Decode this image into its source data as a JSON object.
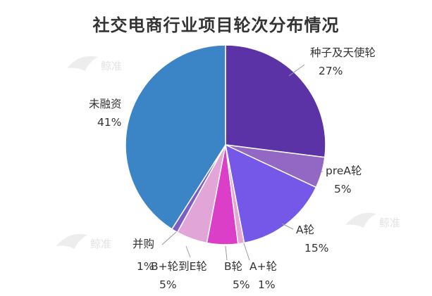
{
  "watermark": "鲸准",
  "chart_data": {
    "type": "pie",
    "title": "社交电商行业项目轮次分布情况",
    "slices": [
      {
        "label": "种子及天使轮",
        "value_label": "27%",
        "value": 27,
        "color": "#5b33a6"
      },
      {
        "label": "preA轮",
        "value_label": "5%",
        "value": 5,
        "color": "#9368c4"
      },
      {
        "label": "A轮",
        "value_label": "15%",
        "value": 15,
        "color": "#7658e8"
      },
      {
        "label": "A+轮",
        "value_label": "1%",
        "value": 1,
        "color": "#e7a6d6"
      },
      {
        "label": "B轮",
        "value_label": "5%",
        "value": 5,
        "color": "#db3fc8"
      },
      {
        "label": "B+轮到E轮",
        "value_label": "5%",
        "value": 5,
        "color": "#e2a5d8"
      },
      {
        "label": "并购",
        "value_label": "1%",
        "value": 1,
        "color": "#7e5cc8"
      },
      {
        "label": "未融资",
        "value_label": "41%",
        "value": 41,
        "color": "#3b85c6"
      }
    ]
  }
}
